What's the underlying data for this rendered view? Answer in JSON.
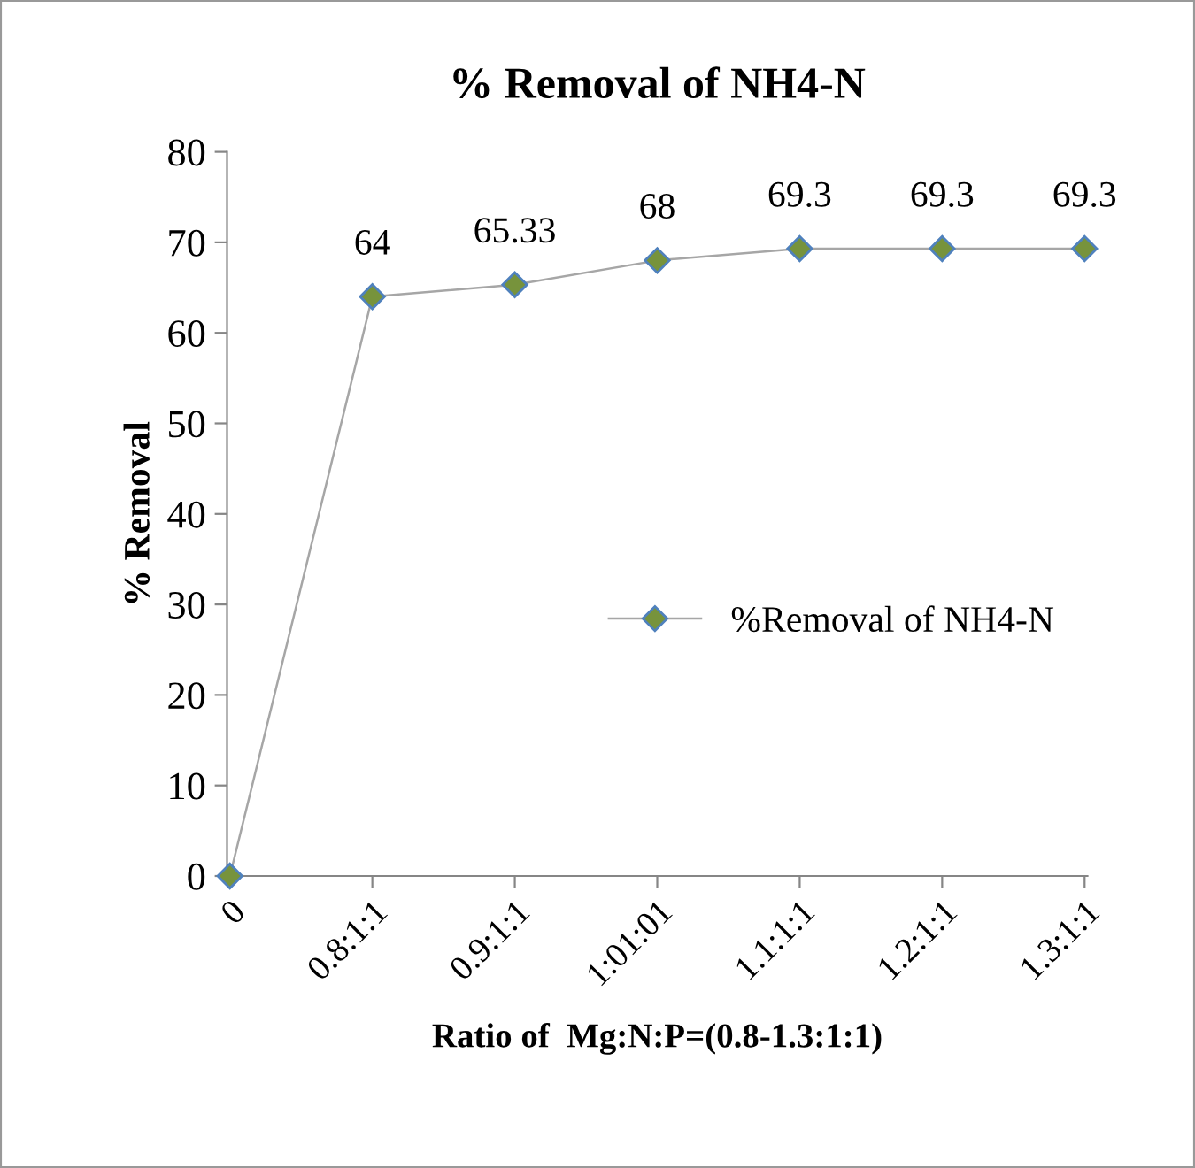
{
  "chart_data": {
    "type": "line",
    "title": "% Removal of NH4-N",
    "xlabel": "Ratio of  Mg:N:P=(0.8-1.3:1:1)",
    "ylabel": "% Removal",
    "categories": [
      "0",
      "0.8:1:1",
      "0.9:1:1",
      "1:01:01",
      "1.1:1:1",
      "1.2:1:1",
      "1.3:1:1"
    ],
    "series": [
      {
        "name": "%Removal of NH4-N",
        "color": "#77933c",
        "values": [
          0,
          64,
          65.33,
          68,
          69.3,
          69.3,
          69.3
        ],
        "value_labels": [
          null,
          "64",
          "65.33",
          "68",
          "69.3",
          "69.3",
          "69.3"
        ]
      }
    ],
    "ylim": [
      0,
      80
    ],
    "yticks": [
      0,
      10,
      20,
      30,
      40,
      50,
      60,
      70,
      80
    ],
    "grid": false,
    "legend": "right",
    "marker": "diamond",
    "line_style": "solid"
  }
}
